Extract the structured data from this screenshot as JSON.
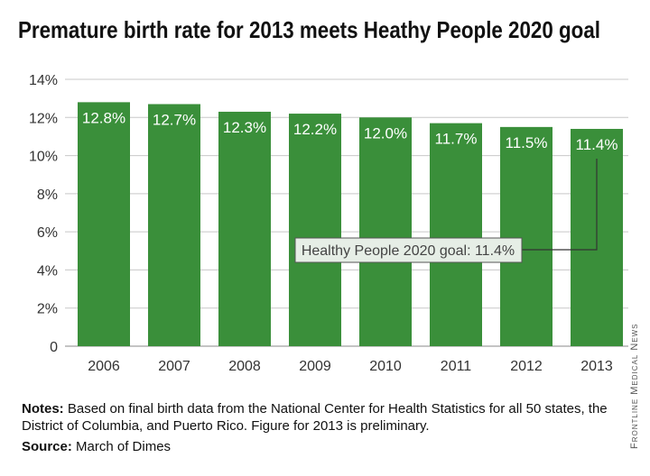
{
  "title": "Premature birth rate for 2013 meets Heathy People 2020 goal",
  "notes_label": "Notes:",
  "notes_text": "Based on final birth data from the National Center for Health Statistics for all 50 states, the District of Columbia, and Puerto Rico. Figure for 2013 is preliminary.",
  "source_label": "Source:",
  "source_text": "March of Dimes",
  "credit": "Frontline Medical News",
  "colors": {
    "bar": "#3a8f3a",
    "grid": "#c8c8c8",
    "goal_box": "#e6eee6"
  },
  "chart_data": {
    "type": "bar",
    "categories": [
      "2006",
      "2007",
      "2008",
      "2009",
      "2010",
      "2011",
      "2012",
      "2013"
    ],
    "values": [
      12.8,
      12.7,
      12.3,
      12.2,
      12.0,
      11.7,
      11.5,
      11.4
    ],
    "value_labels": [
      "12.8%",
      "12.7%",
      "12.3%",
      "12.2%",
      "12.0%",
      "11.7%",
      "11.5%",
      "11.4%"
    ],
    "yticks": [
      0,
      2,
      4,
      6,
      8,
      10,
      12,
      14
    ],
    "ytick_labels": [
      "0",
      "2%",
      "4%",
      "6%",
      "8%",
      "10%",
      "12%",
      "14%"
    ],
    "ylim": [
      0,
      14
    ],
    "grid": true,
    "annotation": {
      "text": "Healthy People 2020 goal: 11.4%",
      "category": "2013",
      "value": 11.4
    }
  }
}
